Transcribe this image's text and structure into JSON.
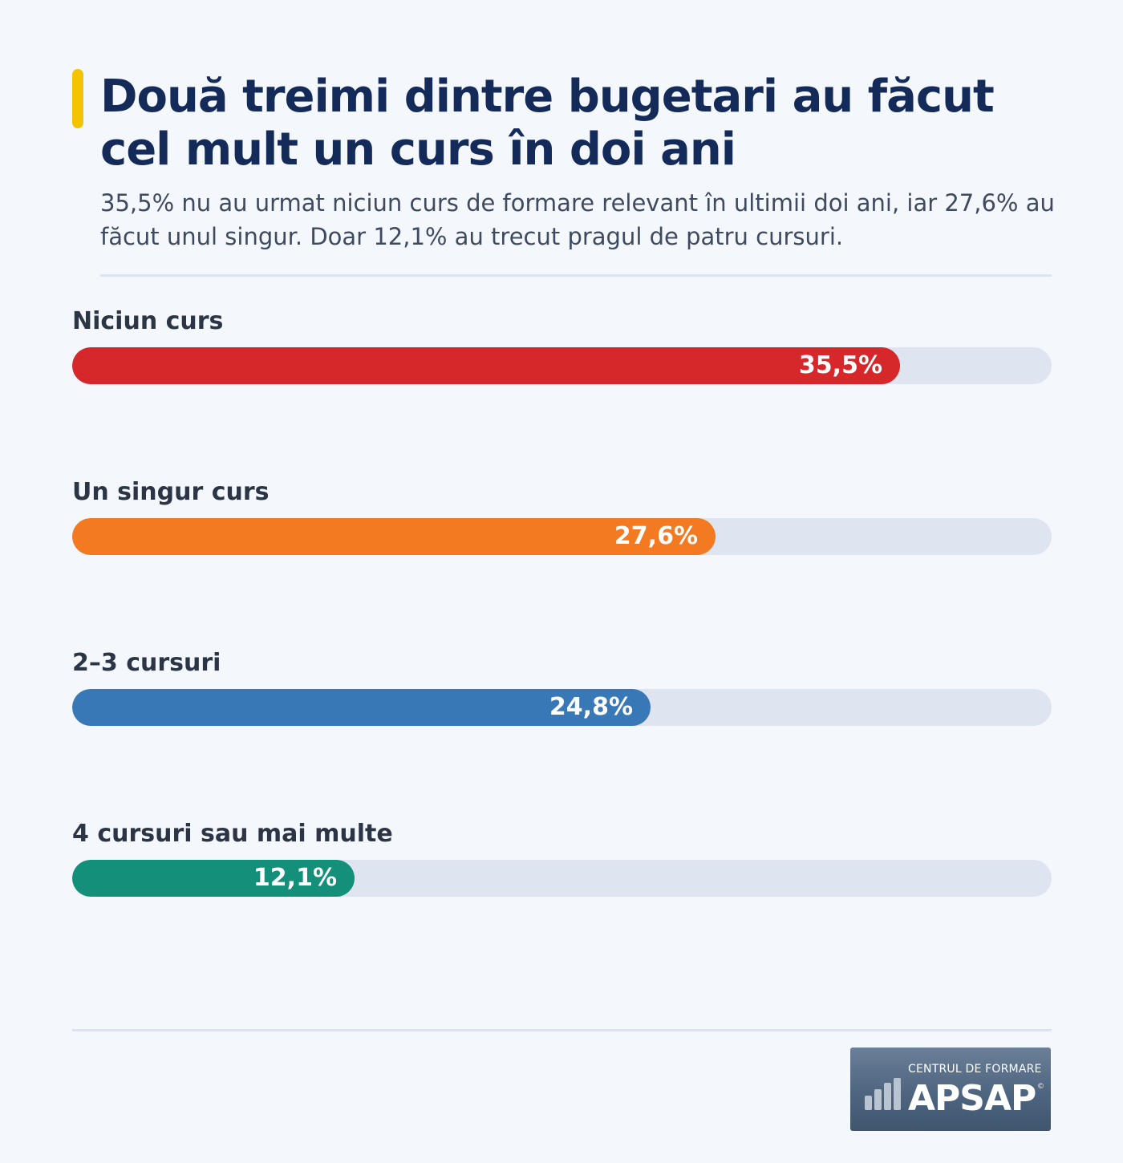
{
  "header": {
    "title": "Două treimi dintre bugetari au făcut cel mult un curs în doi ani",
    "subtitle": "35,5% nu au urmat niciun curs de formare relevant în ultimii doi ani, iar 27,6% au făcut unul singur. Doar 12,1% au trecut pragul de patru cursuri."
  },
  "chart_data": {
    "type": "bar",
    "orientation": "horizontal",
    "categories": [
      "Niciun curs",
      "Un singur curs",
      "2–3 cursuri",
      "4 cursuri sau mai multe"
    ],
    "values": [
      35.5,
      27.6,
      24.8,
      12.1
    ],
    "value_labels": [
      "35,5%",
      "27,6%",
      "24,8%",
      "12,1%"
    ],
    "colors": [
      "#d6282b",
      "#f47a22",
      "#3978b7",
      "#138f7a"
    ],
    "track_color": "#dfe5f0",
    "xlim": [
      0,
      42
    ],
    "grid": false,
    "legend": "none"
  },
  "logo": {
    "line1": "CENTRUL DE FORMARE",
    "line2": "APSAP",
    "mark": "©"
  }
}
